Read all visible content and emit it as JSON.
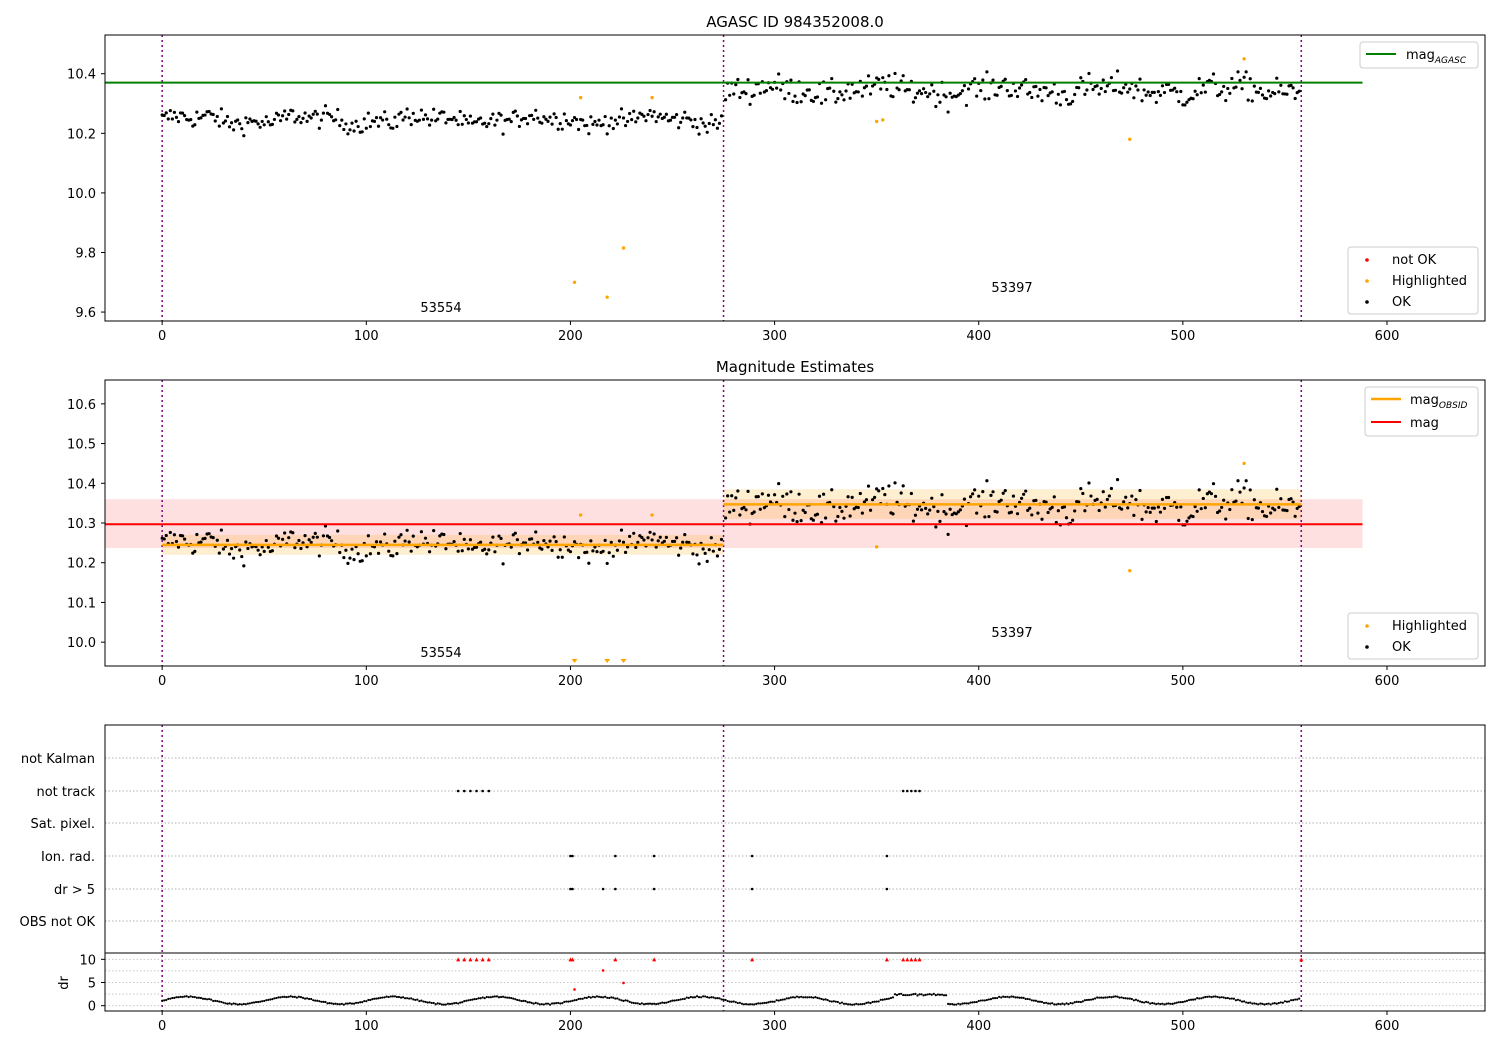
{
  "chart_data": [
    {
      "type": "scatter",
      "title": "AGASC ID 984352008.0",
      "xlim": [
        -28,
        648
      ],
      "ylim": [
        9.57,
        10.53
      ],
      "xticks": [
        "0",
        "100",
        "200",
        "300",
        "400",
        "500",
        "600"
      ],
      "yticks": [
        "9.6",
        "9.8",
        "10.0",
        "10.2",
        "10.4"
      ],
      "vlines": [
        0,
        275,
        558
      ],
      "hline": {
        "y": 10.37,
        "x_end": 588,
        "color": "#008000"
      },
      "segment_labels": [
        {
          "text": "53554",
          "x": 137,
          "y": 9.615
        },
        {
          "text": "53397",
          "x": 416,
          "y": 9.685
        }
      ],
      "legend_top": {
        "placement": "top-right",
        "entries": [
          {
            "label": "mag",
            "sub": "AGASC",
            "color": "#008000"
          }
        ]
      },
      "legend_bottom": {
        "placement": "bottom-right",
        "entries": [
          {
            "label": "not OK",
            "color": "#ff0000"
          },
          {
            "label": "Highlighted",
            "color": "#ffa500"
          },
          {
            "label": "OK",
            "color": "#000000"
          }
        ]
      },
      "segments": [
        {
          "x_start": 0,
          "x_end": 274,
          "mean": 10.245,
          "noise": 0.022
        },
        {
          "x_start": 276,
          "x_end": 557,
          "mean": 10.345,
          "noise": 0.03
        }
      ],
      "highlighted": [
        [
          205,
          10.32
        ],
        [
          202,
          9.7
        ],
        [
          218,
          9.65
        ],
        [
          226,
          9.815
        ],
        [
          240,
          10.32
        ],
        [
          350,
          10.24
        ],
        [
          353,
          10.245
        ],
        [
          474,
          10.18
        ],
        [
          530,
          10.45
        ]
      ]
    },
    {
      "type": "scatter",
      "title": "Magnitude Estimates",
      "xlim": [
        -28,
        648
      ],
      "ylim": [
        9.94,
        10.66
      ],
      "xticks": [
        "0",
        "100",
        "200",
        "300",
        "400",
        "500",
        "600"
      ],
      "yticks": [
        "10.0",
        "10.1",
        "10.2",
        "10.3",
        "10.4",
        "10.5",
        "10.6"
      ],
      "vlines": [
        0,
        275,
        558
      ],
      "mag_line": {
        "y": 10.297,
        "band": [
          10.237,
          10.36
        ],
        "x_end": 588,
        "color": "#ff0000"
      },
      "obsid_lines": [
        {
          "x_start": 0,
          "x_end": 275,
          "y": 10.245,
          "band": [
            10.22,
            10.27
          ]
        },
        {
          "x_start": 275,
          "x_end": 558,
          "y": 10.347,
          "band": [
            10.31,
            10.385
          ]
        }
      ],
      "segment_labels": [
        {
          "text": "53554",
          "x": 137,
          "y": 9.962
        },
        {
          "text": "53397",
          "x": 416,
          "y": 10.018
        }
      ],
      "legend_top": {
        "placement": "top-right",
        "entries": [
          {
            "label": "mag",
            "sub": "OBSID",
            "color": "#ffa500"
          },
          {
            "label": "mag",
            "sub": "",
            "color": "#ff0000"
          }
        ]
      },
      "legend_bottom": {
        "placement": "bottom-right",
        "entries": [
          {
            "label": "Highlighted",
            "color": "#ffa500"
          },
          {
            "label": "OK",
            "color": "#000000"
          }
        ]
      },
      "segments": [
        {
          "x_start": 0,
          "x_end": 274,
          "mean": 10.245,
          "noise": 0.022
        },
        {
          "x_start": 276,
          "x_end": 557,
          "mean": 10.345,
          "noise": 0.03
        }
      ],
      "highlighted": [
        [
          205,
          10.32
        ],
        [
          240,
          10.32
        ],
        [
          350,
          10.24
        ],
        [
          474,
          10.18
        ],
        [
          530,
          10.45
        ]
      ],
      "off_axis_markers": [
        202,
        218,
        226
      ]
    },
    {
      "type": "scatter",
      "xlim": [
        -28,
        648
      ],
      "xticks": [
        "0",
        "100",
        "200",
        "300",
        "400",
        "500",
        "600"
      ],
      "vlines": [
        0,
        275,
        558
      ],
      "flag_rows": [
        "not Kalman",
        "not track",
        "Sat. pixel.",
        "Ion. rad.",
        "dr > 5",
        "OBS not OK"
      ],
      "flag_points": {
        "not track": [
          145,
          148,
          151,
          154,
          157,
          160,
          363,
          365,
          367,
          369,
          371
        ],
        "Ion. rad.": [
          200,
          201,
          222,
          241,
          289,
          355
        ],
        "dr > 5": [
          200,
          201,
          216,
          222,
          241,
          289,
          355
        ]
      },
      "dr_ylim": [
        -0.5,
        10.5
      ],
      "dr_yticks": [
        "0",
        "5",
        "10"
      ],
      "dr_ylabel": "dr",
      "dr_clipped_x": [
        145,
        148,
        151,
        154,
        157,
        160,
        200,
        201,
        222,
        241,
        289,
        355,
        363,
        365,
        367,
        369,
        371,
        558
      ],
      "dr_outliers": [
        [
          216,
          7.6
        ],
        [
          202,
          3.5
        ],
        [
          226,
          4.9
        ]
      ]
    }
  ]
}
